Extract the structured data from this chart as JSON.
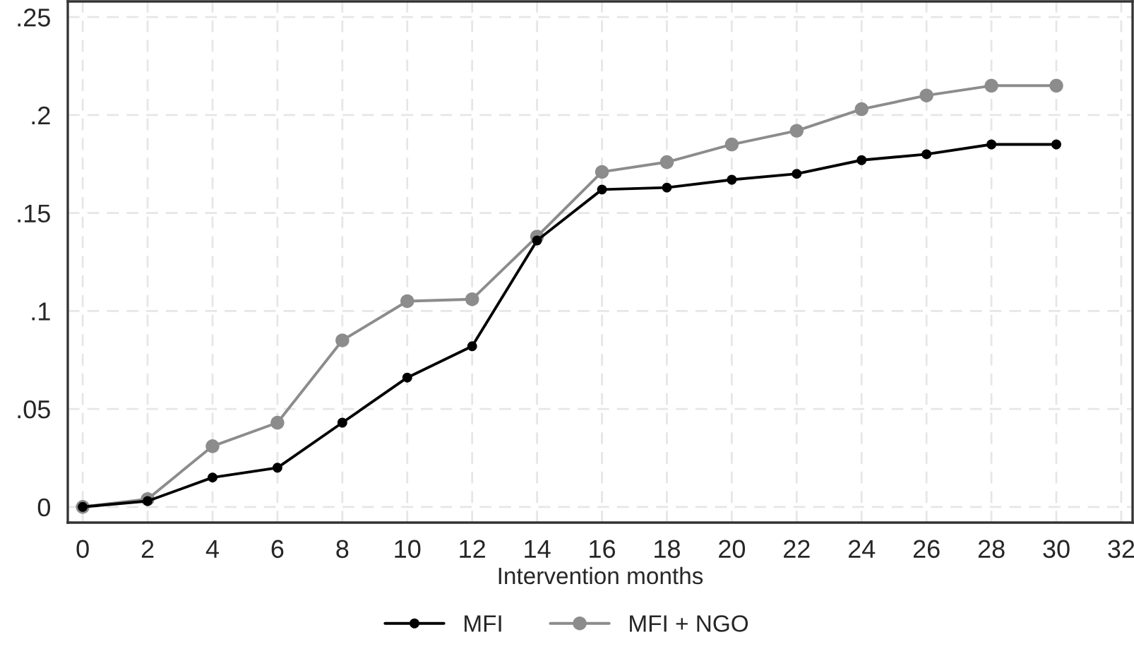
{
  "chart_data": {
    "type": "line",
    "xlabel": "Intervention months",
    "x": [
      0,
      2,
      4,
      6,
      8,
      10,
      12,
      14,
      16,
      18,
      20,
      22,
      24,
      26,
      28,
      30
    ],
    "series": [
      {
        "name": "MFI",
        "color": "#000000",
        "values": [
          0,
          0.003,
          0.015,
          0.02,
          0.043,
          0.066,
          0.082,
          0.136,
          0.162,
          0.163,
          0.167,
          0.17,
          0.177,
          0.18,
          0.185,
          0.185
        ]
      },
      {
        "name": "MFI + NGO",
        "color": "#8c8c8c",
        "values": [
          0,
          0.004,
          0.031,
          0.043,
          0.085,
          0.105,
          0.106,
          0.138,
          0.171,
          0.176,
          0.185,
          0.192,
          0.203,
          0.21,
          0.215,
          0.215
        ]
      }
    ],
    "xlim": [
      -0.46,
      32.35
    ],
    "ylim": [
      -0.008,
      0.258
    ],
    "xticks": [
      0,
      2,
      4,
      6,
      8,
      10,
      12,
      14,
      16,
      18,
      20,
      22,
      24,
      26,
      28,
      30,
      32
    ],
    "yticks": [
      {
        "value": 0,
        "label": "0"
      },
      {
        "value": 0.05,
        "label": ".05"
      },
      {
        "value": 0.1,
        "label": ".1"
      },
      {
        "value": 0.15,
        "label": ".15"
      },
      {
        "value": 0.2,
        "label": ".2"
      },
      {
        "value": 0.25,
        "label": ".25"
      }
    ],
    "grid": true,
    "legend": "bottom",
    "marker": "circle",
    "line_style": "solid"
  }
}
